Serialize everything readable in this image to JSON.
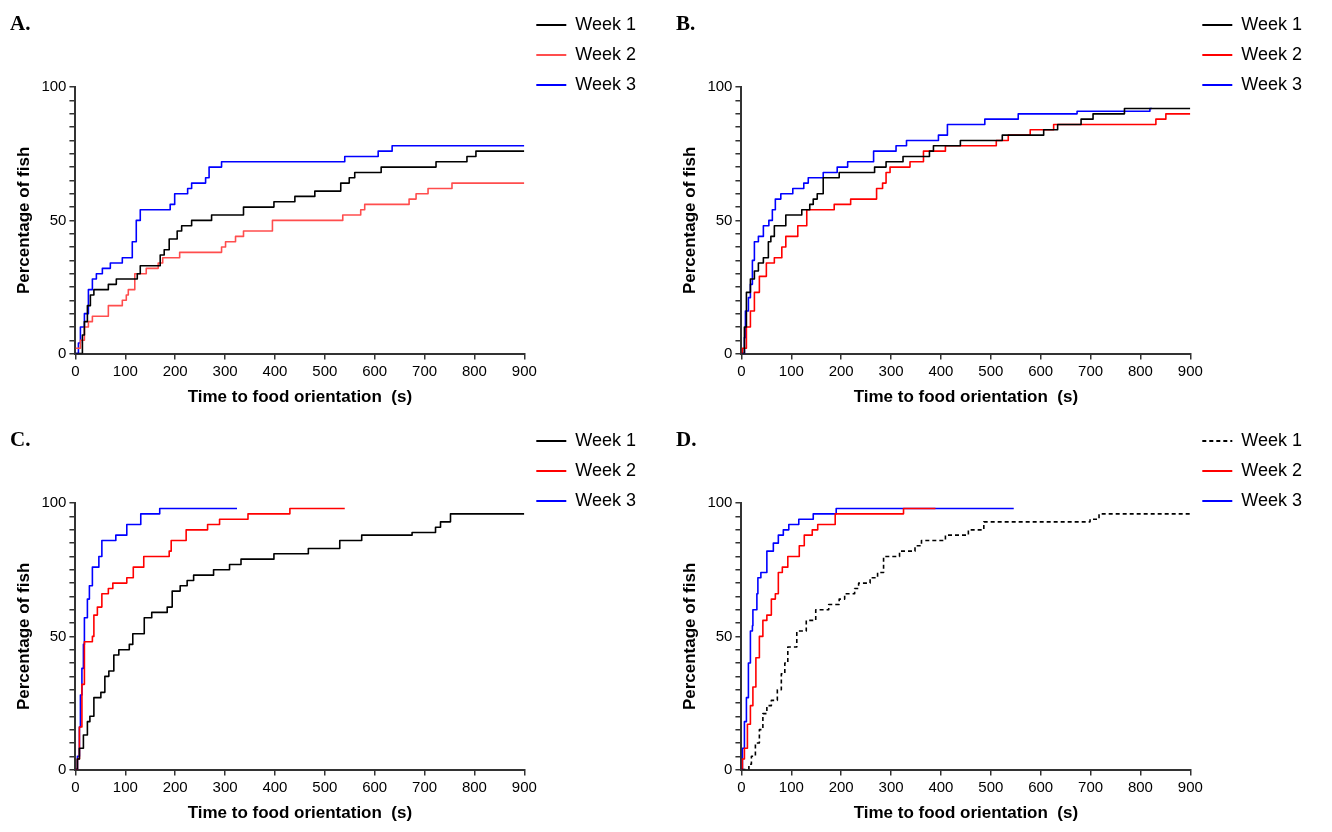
{
  "chart_data": [
    {
      "type": "step",
      "title": "A.",
      "xlabel": "Time to food orientation  (s)",
      "ylabel": "Percentage of fish",
      "xlim": [
        0,
        900
      ],
      "ylim": [
        0,
        100
      ],
      "xticks": [
        0,
        100,
        200,
        300,
        400,
        500,
        600,
        700,
        800,
        900
      ],
      "yticks": [
        0,
        {
          "value": 5,
          "label": null
        },
        {
          "value": 10,
          "label": null
        },
        {
          "value": 15,
          "label": null
        },
        {
          "value": 20,
          "label": null
        },
        {
          "value": 25,
          "label": null
        },
        {
          "value": 30,
          "label": null
        },
        {
          "value": 35,
          "label": null
        },
        {
          "value": 40,
          "label": null
        },
        {
          "value": 45,
          "label": null
        },
        50,
        {
          "value": 55,
          "label": null
        },
        {
          "value": 60,
          "label": null
        },
        {
          "value": 65,
          "label": null
        },
        {
          "value": 70,
          "label": null
        },
        {
          "value": 75,
          "label": null
        },
        {
          "value": 80,
          "label": null
        },
        {
          "value": 85,
          "label": null
        },
        {
          "value": 90,
          "label": null
        },
        {
          "value": 95,
          "label": null
        },
        100
      ],
      "grid": false,
      "legend": "right",
      "marker": "none",
      "series": [
        {
          "name": "Week 1",
          "color": "#000000",
          "x": [
            0,
            14,
            18,
            24,
            30,
            37,
            66,
            82,
            124,
            130,
            170,
            178,
            188,
            204,
            213,
            233,
            273,
            337,
            398,
            440,
            480,
            532,
            549,
            560,
            613,
            723,
            785,
            803,
            854,
            900
          ],
          "values": [
            0,
            7,
            12,
            18,
            22,
            24,
            26,
            28,
            30,
            33,
            37,
            39,
            43,
            46,
            48,
            50,
            52,
            55,
            57,
            59,
            61,
            64,
            66,
            68,
            70,
            72,
            74,
            76,
            76,
            76
          ]
        },
        {
          "name": "Week 2",
          "color": "#ff4d4d",
          "x": [
            0,
            10,
            18,
            26,
            34,
            66,
            94,
            102,
            106,
            119,
            142,
            166,
            175,
            209,
            293,
            301,
            321,
            337,
            395,
            536,
            572,
            580,
            669,
            683,
            707,
            755,
            833,
            900
          ],
          "values": [
            2,
            5,
            10,
            12,
            14,
            18,
            20,
            22,
            24,
            30,
            32,
            34,
            36,
            38,
            40,
            42,
            44,
            46,
            50,
            52,
            54,
            56,
            58,
            60,
            62,
            64,
            64,
            64
          ]
        },
        {
          "name": "Week 3",
          "color": "#0000ff",
          "x": [
            0,
            6,
            10,
            18,
            26,
            34,
            42,
            54,
            70,
            94,
            114,
            122,
            130,
            190,
            199,
            225,
            233,
            261,
            268,
            293,
            540,
            607,
            635,
            771,
            900
          ],
          "values": [
            0,
            4,
            10,
            15,
            24,
            28,
            30,
            32,
            34,
            36,
            42,
            50,
            54,
            56,
            60,
            62,
            64,
            66,
            70,
            72,
            74,
            76,
            78,
            78,
            78
          ]
        }
      ]
    },
    {
      "type": "step",
      "title": "B.",
      "xlabel": "Time to food orientation  (s)",
      "ylabel": "Percentage of fish",
      "xlim": [
        0,
        900
      ],
      "ylim": [
        0,
        100
      ],
      "xticks": [
        0,
        100,
        200,
        300,
        400,
        500,
        600,
        700,
        800,
        900
      ],
      "yticks": [
        0,
        {
          "value": 5,
          "label": null
        },
        {
          "value": 10,
          "label": null
        },
        {
          "value": 15,
          "label": null
        },
        {
          "value": 20,
          "label": null
        },
        {
          "value": 25,
          "label": null
        },
        {
          "value": 30,
          "label": null
        },
        {
          "value": 35,
          "label": null
        },
        {
          "value": 40,
          "label": null
        },
        {
          "value": 45,
          "label": null
        },
        50,
        {
          "value": 55,
          "label": null
        },
        {
          "value": 60,
          "label": null
        },
        {
          "value": 65,
          "label": null
        },
        {
          "value": 70,
          "label": null
        },
        {
          "value": 75,
          "label": null
        },
        {
          "value": 80,
          "label": null
        },
        {
          "value": 85,
          "label": null
        },
        {
          "value": 90,
          "label": null
        },
        {
          "value": 95,
          "label": null
        },
        100
      ],
      "grid": false,
      "legend": "right",
      "marker": "none",
      "series": [
        {
          "name": "Week 1",
          "color": "#000000",
          "x": [
            0,
            6,
            10,
            18,
            26,
            34,
            44,
            54,
            59,
            66,
            89,
            121,
            137,
            144,
            152,
            164,
            196,
            267,
            290,
            324,
            377,
            385,
            439,
            523,
            606,
            634,
            681,
            705,
            768,
            815,
            900
          ],
          "values": [
            0,
            10,
            23,
            28,
            31,
            34,
            36,
            42,
            44,
            48,
            52,
            54,
            56,
            58,
            60,
            66,
            68,
            70,
            72,
            74,
            76,
            78,
            80,
            82,
            84,
            86,
            88,
            90,
            92,
            92,
            92
          ]
        },
        {
          "name": "Week 2",
          "color": "#ff0000",
          "x": [
            0,
            2,
            10,
            18,
            26,
            36,
            50,
            66,
            81,
            89,
            113,
            131,
            186,
            219,
            271,
            283,
            290,
            298,
            338,
            365,
            409,
            511,
            535,
            579,
            626,
            831,
            851,
            900
          ],
          "values": [
            0,
            2,
            10,
            16,
            23,
            29,
            34,
            36,
            40,
            44,
            48,
            54,
            56,
            58,
            62,
            64,
            68,
            70,
            72,
            76,
            78,
            80,
            82,
            84,
            86,
            88,
            90,
            90
          ]
        },
        {
          "name": "Week 3",
          "color": "#0000ff",
          "x": [
            0,
            6,
            8,
            14,
            18,
            22,
            26,
            34,
            44,
            55,
            62,
            68,
            79,
            103,
            125,
            134,
            164,
            192,
            213,
            265,
            310,
            331,
            395,
            413,
            488,
            555,
            673,
            819,
            823
          ],
          "values": [
            0,
            6,
            16,
            21,
            26,
            35,
            42,
            44,
            48,
            50,
            54,
            58,
            60,
            62,
            64,
            66,
            68,
            70,
            72,
            76,
            78,
            80,
            82,
            86,
            88,
            90,
            91,
            92,
            92
          ]
        }
      ]
    },
    {
      "type": "step",
      "title": "C.",
      "xlabel": "Time to food orientation  (s)",
      "ylabel": "Percentage of fish",
      "xlim": [
        0,
        900
      ],
      "ylim": [
        0,
        100
      ],
      "xticks": [
        0,
        100,
        200,
        300,
        400,
        500,
        600,
        700,
        800,
        900
      ],
      "yticks": [
        0,
        {
          "value": 5,
          "label": null
        },
        {
          "value": 10,
          "label": null
        },
        {
          "value": 15,
          "label": null
        },
        {
          "value": 20,
          "label": null
        },
        {
          "value": 25,
          "label": null
        },
        {
          "value": 30,
          "label": null
        },
        {
          "value": 35,
          "label": null
        },
        {
          "value": 40,
          "label": null
        },
        {
          "value": 45,
          "label": null
        },
        50,
        {
          "value": 55,
          "label": null
        },
        {
          "value": 60,
          "label": null
        },
        {
          "value": 65,
          "label": null
        },
        {
          "value": 70,
          "label": null
        },
        {
          "value": 75,
          "label": null
        },
        {
          "value": 80,
          "label": null
        },
        {
          "value": 85,
          "label": null
        },
        {
          "value": 90,
          "label": null
        },
        {
          "value": 95,
          "label": null
        },
        100
      ],
      "grid": false,
      "legend": "right",
      "marker": "none",
      "series": [
        {
          "name": "Week 1",
          "color": "#000000",
          "x": [
            0,
            4,
            8,
            16,
            24,
            29,
            37,
            51,
            59,
            67,
            77,
            87,
            108,
            115,
            138,
            153,
            184,
            194,
            210,
            224,
            237,
            277,
            309,
            332,
            398,
            467,
            530,
            574,
            675,
            722,
            732,
            752,
            900
          ],
          "values": [
            0,
            4,
            8,
            13,
            18,
            20,
            27,
            29,
            35,
            37,
            43,
            45,
            47,
            51,
            57,
            59,
            61,
            67,
            69,
            71,
            73,
            75,
            77,
            79,
            81,
            83,
            86,
            88,
            89,
            91,
            93,
            96,
            96
          ]
        },
        {
          "name": "Week 2",
          "color": "#ff0000",
          "x": [
            0,
            4,
            8,
            13,
            18,
            34,
            37,
            44,
            53,
            66,
            75,
            103,
            116,
            137,
            188,
            192,
            222,
            265,
            289,
            346,
            430,
            540
          ],
          "values": [
            0,
            4,
            16,
            32,
            48,
            50,
            58,
            61,
            66,
            68,
            70,
            72,
            76,
            80,
            82,
            86,
            90,
            92,
            94,
            96,
            98,
            98
          ]
        },
        {
          "name": "Week 3",
          "color": "#0000ff",
          "x": [
            0,
            4,
            8,
            10,
            13,
            16,
            18,
            24,
            28,
            34,
            47,
            53,
            81,
            103,
            131,
            169,
            324
          ],
          "values": [
            0,
            5,
            16,
            28,
            38,
            47,
            57,
            64,
            69,
            76,
            80,
            86,
            88,
            92,
            96,
            98,
            98
          ]
        }
      ]
    },
    {
      "type": "step",
      "title": "D.",
      "xlabel": "Time to food orientation  (s)",
      "ylabel": "Percentage of fish",
      "xlim": [
        0,
        900
      ],
      "ylim": [
        0,
        100
      ],
      "xticks": [
        0,
        100,
        200,
        300,
        400,
        500,
        600,
        700,
        800,
        900
      ],
      "yticks": [
        0,
        {
          "value": 5,
          "label": null
        },
        {
          "value": 10,
          "label": null
        },
        {
          "value": 15,
          "label": null
        },
        {
          "value": 20,
          "label": null
        },
        {
          "value": 25,
          "label": null
        },
        {
          "value": 30,
          "label": null
        },
        {
          "value": 35,
          "label": null
        },
        {
          "value": 40,
          "label": null
        },
        {
          "value": 45,
          "label": null
        },
        50,
        {
          "value": 55,
          "label": null
        },
        {
          "value": 60,
          "label": null
        },
        {
          "value": 65,
          "label": null
        },
        {
          "value": 70,
          "label": null
        },
        {
          "value": 75,
          "label": null
        },
        {
          "value": 80,
          "label": null
        },
        {
          "value": 85,
          "label": null
        },
        {
          "value": 90,
          "label": null
        },
        {
          "value": 95,
          "label": null
        },
        100
      ],
      "grid": false,
      "legend": "right",
      "marker": "none",
      "series": [
        {
          "name": "Week 1",
          "color": "#000000",
          "line_style": "dashed",
          "x": [
            0,
            15,
            20,
            28,
            36,
            43,
            51,
            60,
            72,
            80,
            87,
            93,
            111,
            130,
            149,
            175,
            196,
            207,
            227,
            235,
            258,
            273,
            285,
            317,
            348,
            361,
            409,
            455,
            486,
            699,
            717,
            900
          ],
          "values": [
            0,
            2,
            5,
            10,
            15,
            21,
            24,
            26,
            30,
            36,
            40,
            46,
            52,
            56,
            60,
            62,
            64,
            66,
            68,
            70,
            72,
            74,
            80,
            82,
            84,
            86,
            88,
            90,
            93,
            94,
            96,
            96
          ]
        },
        {
          "name": "Week 2",
          "color": "#ff0000",
          "x": [
            0,
            2,
            6,
            12,
            18,
            23,
            29,
            36,
            43,
            51,
            60,
            68,
            74,
            82,
            93,
            116,
            126,
            142,
            153,
            188,
            325,
            389
          ],
          "values": [
            0,
            4,
            8,
            17,
            24,
            31,
            42,
            50,
            56,
            58,
            64,
            66,
            74,
            76,
            80,
            84,
            88,
            90,
            92,
            96,
            98,
            98
          ]
        },
        {
          "name": "Week 3",
          "color": "#0000ff",
          "x": [
            0,
            2,
            6,
            10,
            14,
            18,
            22,
            23,
            31,
            33,
            39,
            51,
            64,
            74,
            84,
            95,
            115,
            144,
            190,
            546
          ],
          "values": [
            0,
            8,
            18,
            27,
            40,
            52,
            54,
            60,
            66,
            72,
            74,
            82,
            85,
            88,
            90,
            92,
            94,
            96,
            98,
            98
          ]
        }
      ]
    }
  ]
}
